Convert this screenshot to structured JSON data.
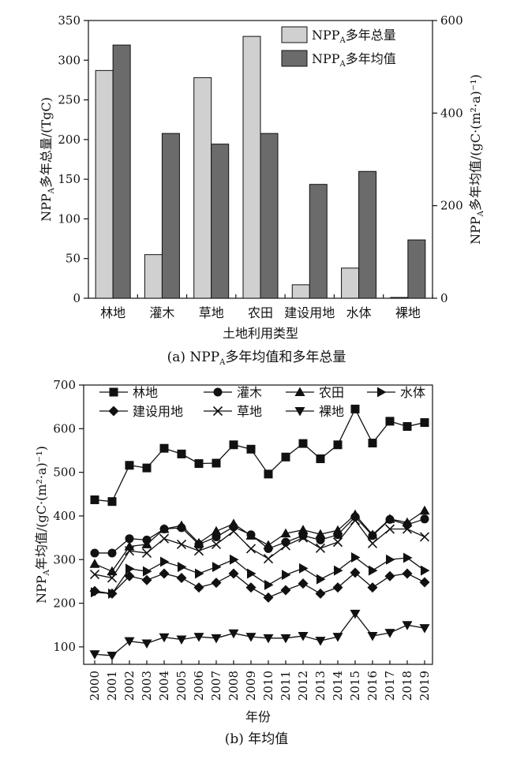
{
  "chart_data": [
    {
      "type": "bar",
      "caption": {
        "prefix": "(a) NPP",
        "sub": "A",
        "suffix": "多年均值和多年总量"
      },
      "xlabel": "土地利用类型",
      "ylabel": {
        "prefix": "NPP",
        "sub": "A",
        "suffix": "多年总量/(TgC)"
      },
      "y2label": {
        "prefix": "NPP",
        "sub": "A",
        "suffix": "多年均值/(gC·(m²·a)⁻¹)"
      },
      "categories": [
        "林地",
        "灌木",
        "草地",
        "农田",
        "建设用地",
        "水体",
        "裸地"
      ],
      "ylim": [
        0,
        350
      ],
      "yticks": [
        "0",
        "50",
        "100",
        "150",
        "200",
        "250",
        "300",
        "350"
      ],
      "y2lim": [
        0,
        600
      ],
      "y2ticks": [
        "0",
        "200",
        "400",
        "600"
      ],
      "series": [
        {
          "name": {
            "prefix": "NPP",
            "sub": "A",
            "suffix": "多年总量"
          },
          "axis": "left",
          "color": "#d0d0d0",
          "values": [
            287,
            55,
            278,
            330,
            17,
            38,
            1
          ]
        },
        {
          "name": {
            "prefix": "NPP",
            "sub": "A",
            "suffix": "多年均值"
          },
          "axis": "right",
          "color": "#6b6b6b",
          "values": [
            547,
            356,
            333,
            356,
            246,
            274,
            126
          ]
        }
      ],
      "legend": "top-right",
      "grid": false
    },
    {
      "type": "line",
      "caption": "(b) 年均值",
      "xlabel": "年份",
      "ylabel": {
        "prefix": "NPP",
        "sub": "A",
        "suffix": "年均值/(gC·(m²·a)⁻¹)"
      },
      "x": [
        "2000",
        "2001",
        "2002",
        "2003",
        "2004",
        "2005",
        "2006",
        "2007",
        "2008",
        "2009",
        "2010",
        "2011",
        "2012",
        "2013",
        "2014",
        "2015",
        "2016",
        "2017",
        "2018",
        "2019"
      ],
      "ylim": [
        60,
        700
      ],
      "yticks": [
        "100",
        "200",
        "300",
        "400",
        "500",
        "600",
        "700"
      ],
      "legend": "top",
      "grid": false,
      "series": [
        {
          "name": "林地",
          "marker": "square",
          "values": [
            437,
            433,
            516,
            510,
            555,
            542,
            520,
            521,
            563,
            553,
            496,
            535,
            566,
            531,
            563,
            645,
            567,
            617,
            605,
            614
          ]
        },
        {
          "name": "灌木",
          "marker": "circle",
          "values": [
            315,
            315,
            348,
            345,
            370,
            373,
            335,
            352,
            375,
            357,
            325,
            340,
            355,
            345,
            357,
            398,
            355,
            392,
            380,
            393
          ]
        },
        {
          "name": "农田",
          "marker": "triangle-up",
          "values": [
            290,
            273,
            330,
            335,
            370,
            378,
            338,
            365,
            382,
            355,
            333,
            360,
            368,
            358,
            367,
            403,
            357,
            393,
            385,
            412
          ]
        },
        {
          "name": "水体",
          "marker": "triangle-right",
          "values": [
            225,
            222,
            279,
            273,
            295,
            283,
            268,
            283,
            300,
            268,
            242,
            265,
            280,
            255,
            275,
            305,
            275,
            300,
            304,
            275
          ]
        },
        {
          "name": "建设用地",
          "marker": "diamond",
          "values": [
            228,
            222,
            262,
            253,
            268,
            258,
            236,
            247,
            268,
            236,
            213,
            230,
            245,
            222,
            236,
            270,
            236,
            262,
            268,
            248
          ]
        },
        {
          "name": "草地",
          "marker": "x",
          "values": [
            266,
            258,
            320,
            315,
            348,
            335,
            320,
            335,
            365,
            325,
            302,
            332,
            350,
            326,
            340,
            390,
            337,
            370,
            370,
            352
          ]
        },
        {
          "name": "裸地",
          "marker": "triangle-down",
          "values": [
            83,
            80,
            113,
            108,
            122,
            117,
            123,
            120,
            131,
            123,
            120,
            120,
            125,
            114,
            123,
            176,
            125,
            132,
            150,
            143
          ]
        }
      ]
    }
  ]
}
